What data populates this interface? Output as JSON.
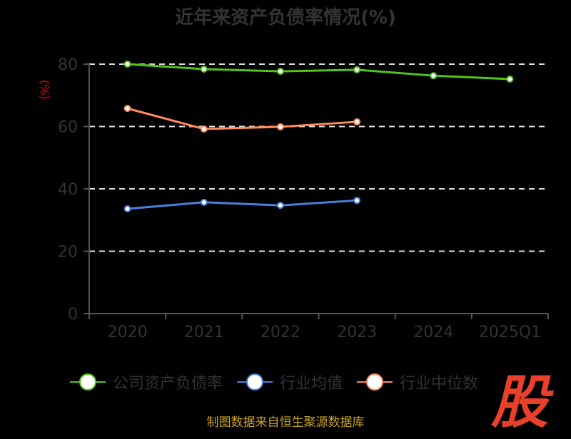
{
  "chart_data": {
    "type": "line",
    "title": "近年来资产负债率情况(%)",
    "ylabel": "(%)",
    "categories": [
      "2020",
      "2021",
      "2022",
      "2023",
      "2024",
      "2025Q1"
    ],
    "ylim": [
      0,
      80
    ],
    "yticks": [
      0,
      20,
      40,
      60,
      80
    ],
    "grid": true,
    "legend_position": "bottom",
    "series": [
      {
        "name": "公司资产负债率",
        "color": "#52c41a",
        "values": [
          80.0,
          78.4,
          77.7,
          78.2,
          76.3,
          75.2
        ]
      },
      {
        "name": "行业均值",
        "color": "#4a7fe0",
        "values": [
          33.6,
          35.7,
          34.7,
          36.3,
          null,
          null
        ]
      },
      {
        "name": "行业中位数",
        "color": "#ff8c5a",
        "values": [
          65.8,
          59.2,
          59.9,
          61.5,
          null,
          null
        ]
      }
    ]
  },
  "source": "制图数据来自恒生聚源数据库",
  "logo": "股"
}
